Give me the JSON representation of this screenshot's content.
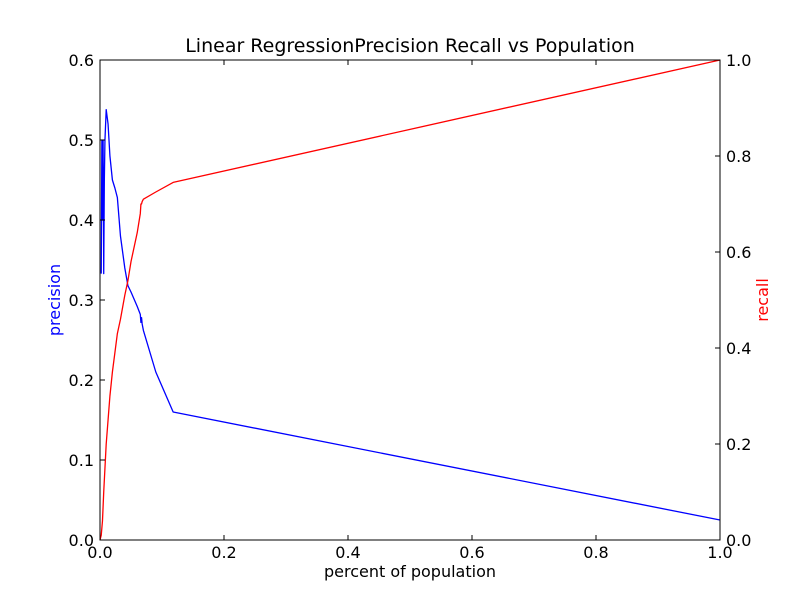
{
  "chart_data": {
    "type": "line",
    "title": "Linear RegressionPrecision Recall vs Population",
    "xlabel": "percent of population",
    "y1label": "precision",
    "y2label": "recall",
    "xlim": [
      0.0,
      1.0
    ],
    "y1lim": [
      0.0,
      0.6
    ],
    "y2lim": [
      0.0,
      1.0
    ],
    "xticks": [
      "0.0",
      "0.2",
      "0.4",
      "0.6",
      "0.8",
      "1.0"
    ],
    "y1ticks": [
      "0.0",
      "0.1",
      "0.2",
      "0.3",
      "0.4",
      "0.5",
      "0.6"
    ],
    "y2ticks": [
      "0.0",
      "0.2",
      "0.4",
      "0.6",
      "0.8",
      "1.0"
    ],
    "grid": false,
    "legend": "none",
    "series": [
      {
        "axis": "left",
        "color": "#0000ff",
        "x": [
          0.002,
          0.003,
          0.004,
          0.005,
          0.006,
          0.007,
          0.008,
          0.01,
          0.013,
          0.016,
          0.02,
          0.024,
          0.028,
          0.033,
          0.04,
          0.045,
          0.05,
          0.06,
          0.065,
          0.066,
          0.067,
          0.068,
          0.07,
          0.09,
          0.118,
          1.0
        ],
        "values": [
          0.333,
          0.5,
          0.4,
          0.5,
          0.333,
          0.45,
          0.5,
          0.538,
          0.52,
          0.48,
          0.45,
          0.44,
          0.428,
          0.38,
          0.34,
          0.318,
          0.31,
          0.292,
          0.282,
          0.272,
          0.278,
          0.27,
          0.262,
          0.21,
          0.16,
          0.025
        ]
      },
      {
        "axis": "right",
        "color": "#ff0000",
        "x": [
          0.0,
          0.002,
          0.004,
          0.006,
          0.008,
          0.01,
          0.013,
          0.016,
          0.02,
          0.024,
          0.028,
          0.033,
          0.04,
          0.045,
          0.05,
          0.06,
          0.065,
          0.066,
          0.067,
          0.068,
          0.07,
          0.09,
          0.118,
          1.0
        ],
        "values": [
          0.0,
          0.01,
          0.04,
          0.1,
          0.15,
          0.2,
          0.25,
          0.3,
          0.35,
          0.39,
          0.43,
          0.46,
          0.51,
          0.54,
          0.58,
          0.64,
          0.68,
          0.7,
          0.7,
          0.705,
          0.71,
          0.725,
          0.745,
          1.0
        ]
      }
    ]
  }
}
